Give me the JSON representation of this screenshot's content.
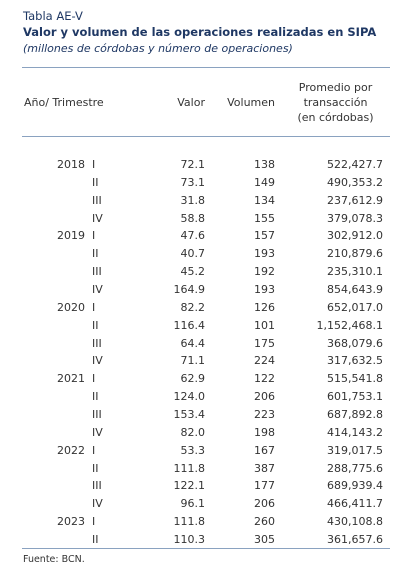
{
  "header": {
    "label": "Tabla AE-V",
    "title": "Valor y volumen de las operaciones realizadas en SIPA",
    "subtitle": "(millones de córdobas y número de operaciones)"
  },
  "table": {
    "columns": [
      "Año/ Trimestre",
      "Valor",
      "Volumen",
      [
        "Promedio por",
        "transacción",
        "(en córdobas)"
      ]
    ],
    "rows": [
      [
        "2018",
        "I",
        "72.1",
        "138",
        "522,427.7"
      ],
      [
        null,
        "II",
        "73.1",
        "149",
        "490,353.2"
      ],
      [
        null,
        "III",
        "31.8",
        "134",
        "237,612.9"
      ],
      [
        null,
        "IV",
        "58.8",
        "155",
        "379,078.3"
      ],
      [
        "2019",
        "I",
        "47.6",
        "157",
        "302,912.0"
      ],
      [
        null,
        "II",
        "40.7",
        "193",
        "210,879.6"
      ],
      [
        null,
        "III",
        "45.2",
        "192",
        "235,310.1"
      ],
      [
        null,
        "IV",
        "164.9",
        "193",
        "854,643.9"
      ],
      [
        "2020",
        "I",
        "82.2",
        "126",
        "652,017.0"
      ],
      [
        null,
        "II",
        "116.4",
        "101",
        "1,152,468.1"
      ],
      [
        null,
        "III",
        "64.4",
        "175",
        "368,079.6"
      ],
      [
        null,
        "IV",
        "71.1",
        "224",
        "317,632.5"
      ],
      [
        "2021",
        "I",
        "62.9",
        "122",
        "515,541.8"
      ],
      [
        null,
        "II",
        "124.0",
        "206",
        "601,753.1"
      ],
      [
        null,
        "III",
        "153.4",
        "223",
        "687,892.8"
      ],
      [
        null,
        "IV",
        "82.0",
        "198",
        "414,143.2"
      ],
      [
        "2022",
        "I",
        "53.3",
        "167",
        "319,017.5"
      ],
      [
        null,
        "II",
        "111.8",
        "387",
        "288,775.6"
      ],
      [
        null,
        "III",
        "122.1",
        "177",
        "689,939.4"
      ],
      [
        null,
        "IV",
        "96.1",
        "206",
        "466,411.7"
      ],
      [
        "2023",
        "I",
        "111.8",
        "260",
        "430,108.8"
      ],
      [
        null,
        "II",
        "110.3",
        "305",
        "361,657.6"
      ]
    ]
  },
  "footer": {
    "source": "Fuente: BCN."
  }
}
